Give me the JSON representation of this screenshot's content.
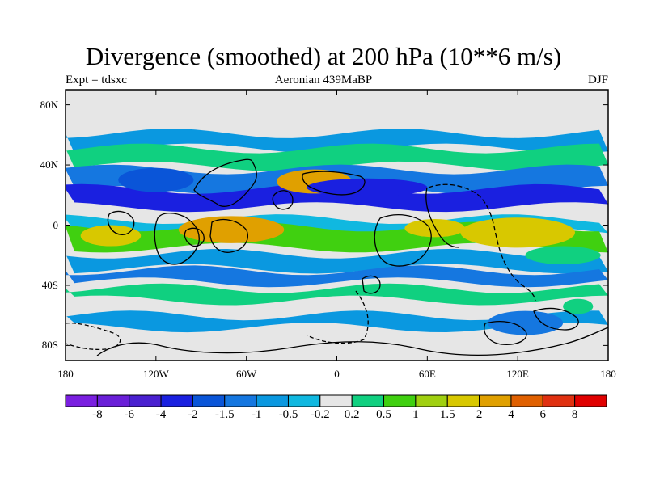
{
  "title": "Divergence (smoothed) at 200 hPa (10**6 m/s)",
  "subtitle_left": "Expt = tdsxc",
  "subtitle_center": "Aeronian 439MaBP",
  "subtitle_right": "DJF",
  "map": {
    "type": "filled-contour-map",
    "projection": "cylindrical-equidistant",
    "lon_range": [
      -180,
      180
    ],
    "lat_range": [
      -90,
      90
    ],
    "lat_ticks": [
      {
        "value": 80,
        "label": "80N"
      },
      {
        "value": 40,
        "label": "40N"
      },
      {
        "value": 0,
        "label": "0"
      },
      {
        "value": -40,
        "label": "40S"
      },
      {
        "value": -80,
        "label": "80S"
      }
    ],
    "lon_ticks": [
      {
        "value": -180,
        "label": "180"
      },
      {
        "value": -120,
        "label": "120W"
      },
      {
        "value": -60,
        "label": "60W"
      },
      {
        "value": 0,
        "label": "0"
      },
      {
        "value": 60,
        "label": "60E"
      },
      {
        "value": 120,
        "label": "120E"
      },
      {
        "value": 180,
        "label": "180"
      }
    ],
    "background_color": "#e6e6e6",
    "field_bands": [
      {
        "lat_center": 56,
        "lat_width": 10,
        "value": -0.5
      },
      {
        "lat_center": 45,
        "lat_width": 12,
        "value": 0.5
      },
      {
        "lat_center": 30,
        "lat_width": 14,
        "value": -1
      },
      {
        "lat_center": 18,
        "lat_width": 12,
        "value": -2
      },
      {
        "lat_center": 0,
        "lat_width": 8,
        "value": -0.2
      },
      {
        "lat_center": -8,
        "lat_width": 14,
        "value": 1
      },
      {
        "lat_center": -24,
        "lat_width": 10,
        "value": -0.5
      },
      {
        "lat_center": -34,
        "lat_width": 8,
        "value": -1
      },
      {
        "lat_center": -46,
        "lat_width": 8,
        "value": 0.5
      },
      {
        "lat_center": -64,
        "lat_width": 8,
        "value": -0.5
      }
    ],
    "field_blobs": [
      {
        "lon": -70,
        "lat": -3,
        "lon_r": 35,
        "lat_r": 9,
        "value": 4
      },
      {
        "lon": -150,
        "lat": -7,
        "lon_r": 20,
        "lat_r": 7,
        "value": 2
      },
      {
        "lon": 120,
        "lat": -5,
        "lon_r": 38,
        "lat_r": 10,
        "value": 2
      },
      {
        "lon": 65,
        "lat": -2,
        "lon_r": 20,
        "lat_r": 6,
        "value": 2
      },
      {
        "lon": -15,
        "lat": 29,
        "lon_r": 25,
        "lat_r": 8,
        "value": 4
      },
      {
        "lon": -120,
        "lat": 30,
        "lon_r": 25,
        "lat_r": 8,
        "value": -1.5
      },
      {
        "lon": 20,
        "lat": 25,
        "lon_r": 40,
        "lat_r": 6,
        "value": -2
      },
      {
        "lon": 150,
        "lat": -20,
        "lon_r": 25,
        "lat_r": 6,
        "value": 0.5
      },
      {
        "lon": 125,
        "lat": -65,
        "lon_r": 25,
        "lat_r": 8,
        "value": -1
      },
      {
        "lon": 160,
        "lat": -54,
        "lon_r": 10,
        "lat_r": 5,
        "value": 0.5
      }
    ]
  },
  "colorbar": {
    "levels": [
      "-8",
      "-6",
      "-4",
      "-2",
      "-1.5",
      "-1",
      "-0.5",
      "-0.2",
      "0.2",
      "0.5",
      "1",
      "1.5",
      "2",
      "4",
      "6",
      "8"
    ],
    "colors": [
      "#7a1fe0",
      "#6a1fd8",
      "#4a20d0",
      "#1a20e0",
      "#0a55d8",
      "#1577e0",
      "#0a98e0",
      "#10b8e0",
      "#e6e6e6",
      "#10d080",
      "#40d010",
      "#a0d010",
      "#d8c800",
      "#e0a000",
      "#e06000",
      "#e03010",
      "#e00000"
    ]
  }
}
